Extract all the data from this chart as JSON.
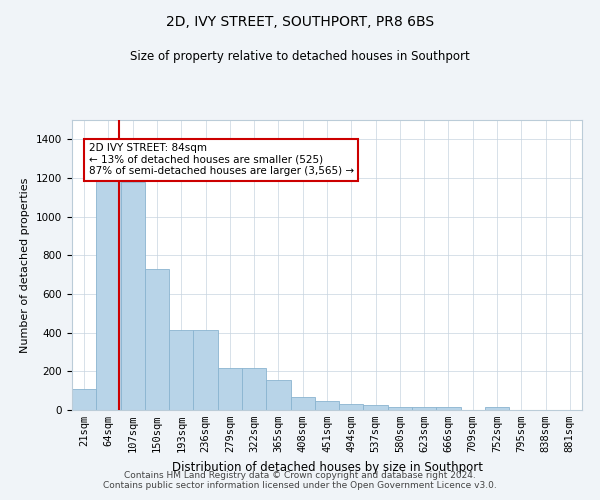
{
  "title": "2D, IVY STREET, SOUTHPORT, PR8 6BS",
  "subtitle": "Size of property relative to detached houses in Southport",
  "xlabel": "Distribution of detached houses by size in Southport",
  "ylabel": "Number of detached properties",
  "categories": [
    "21sqm",
    "64sqm",
    "107sqm",
    "150sqm",
    "193sqm",
    "236sqm",
    "279sqm",
    "322sqm",
    "365sqm",
    "408sqm",
    "451sqm",
    "494sqm",
    "537sqm",
    "580sqm",
    "623sqm",
    "666sqm",
    "709sqm",
    "752sqm",
    "795sqm",
    "838sqm",
    "881sqm"
  ],
  "values": [
    110,
    1190,
    1180,
    730,
    415,
    415,
    215,
    215,
    155,
    65,
    47,
    30,
    25,
    17,
    15,
    15,
    0,
    15,
    0,
    0,
    0
  ],
  "bar_color": "#b8d4e8",
  "bar_edge_color": "#8ab4d0",
  "property_line_x": 1.45,
  "property_line_label": "2D IVY STREET: 84sqm",
  "annotation_line1": "← 13% of detached houses are smaller (525)",
  "annotation_line2": "87% of semi-detached houses are larger (3,565) →",
  "annotation_box_color": "#ffffff",
  "annotation_border_color": "#cc0000",
  "property_line_color": "#cc0000",
  "ylim": [
    0,
    1500
  ],
  "yticks": [
    0,
    200,
    400,
    600,
    800,
    1000,
    1200,
    1400
  ],
  "footer_line1": "Contains HM Land Registry data © Crown copyright and database right 2024.",
  "footer_line2": "Contains public sector information licensed under the Open Government Licence v3.0.",
  "bg_color": "#f0f4f8",
  "plot_bg_color": "#ffffff",
  "grid_color": "#c8d4e0",
  "title_fontsize": 10,
  "subtitle_fontsize": 8.5,
  "xlabel_fontsize": 8.5,
  "ylabel_fontsize": 8,
  "tick_fontsize": 7.5,
  "annotation_fontsize": 7.5,
  "footer_fontsize": 6.5
}
